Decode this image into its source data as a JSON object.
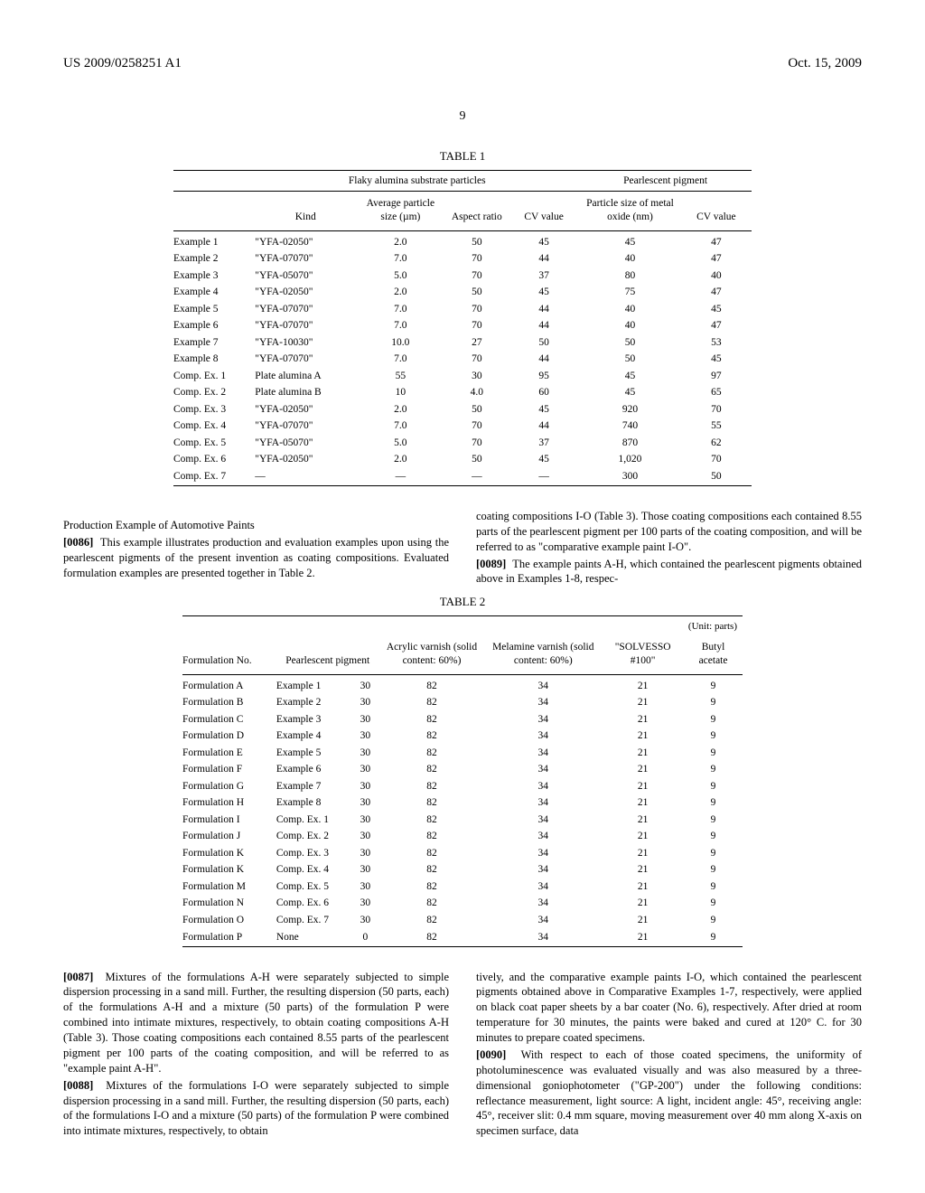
{
  "header": {
    "pub_number": "US 2009/0258251 A1",
    "pub_date": "Oct. 15, 2009"
  },
  "page_num": "9",
  "table1": {
    "caption": "TABLE 1",
    "group1": "Flaky alumina substrate particles",
    "group2": "Pearlescent pigment",
    "cols": {
      "kind": "Kind",
      "avg": "Average particle size (µm)",
      "aspect": "Aspect ratio",
      "cv1": "CV value",
      "psize": "Particle size of metal oxide (nm)",
      "cv2": "CV value"
    },
    "rows": [
      {
        "label": "Example 1",
        "kind": "\"YFA-02050\"",
        "avg": "2.0",
        "aspect": "50",
        "cv1": "45",
        "psize": "45",
        "cv2": "47"
      },
      {
        "label": "Example 2",
        "kind": "\"YFA-07070\"",
        "avg": "7.0",
        "aspect": "70",
        "cv1": "44",
        "psize": "40",
        "cv2": "47"
      },
      {
        "label": "Example 3",
        "kind": "\"YFA-05070\"",
        "avg": "5.0",
        "aspect": "70",
        "cv1": "37",
        "psize": "80",
        "cv2": "40"
      },
      {
        "label": "Example 4",
        "kind": "\"YFA-02050\"",
        "avg": "2.0",
        "aspect": "50",
        "cv1": "45",
        "psize": "75",
        "cv2": "47"
      },
      {
        "label": "Example 5",
        "kind": "\"YFA-07070\"",
        "avg": "7.0",
        "aspect": "70",
        "cv1": "44",
        "psize": "40",
        "cv2": "45"
      },
      {
        "label": "Example 6",
        "kind": "\"YFA-07070\"",
        "avg": "7.0",
        "aspect": "70",
        "cv1": "44",
        "psize": "40",
        "cv2": "47"
      },
      {
        "label": "Example 7",
        "kind": "\"YFA-10030\"",
        "avg": "10.0",
        "aspect": "27",
        "cv1": "50",
        "psize": "50",
        "cv2": "53"
      },
      {
        "label": "Example 8",
        "kind": "\"YFA-07070\"",
        "avg": "7.0",
        "aspect": "70",
        "cv1": "44",
        "psize": "50",
        "cv2": "45"
      },
      {
        "label": "Comp. Ex. 1",
        "kind": "Plate alumina A",
        "avg": "55",
        "aspect": "30",
        "cv1": "95",
        "psize": "45",
        "cv2": "97"
      },
      {
        "label": "Comp. Ex. 2",
        "kind": "Plate alumina B",
        "avg": "10",
        "aspect": "4.0",
        "cv1": "60",
        "psize": "45",
        "cv2": "65"
      },
      {
        "label": "Comp. Ex. 3",
        "kind": "\"YFA-02050\"",
        "avg": "2.0",
        "aspect": "50",
        "cv1": "45",
        "psize": "920",
        "cv2": "70"
      },
      {
        "label": "Comp. Ex. 4",
        "kind": "\"YFA-07070\"",
        "avg": "7.0",
        "aspect": "70",
        "cv1": "44",
        "psize": "740",
        "cv2": "55"
      },
      {
        "label": "Comp. Ex. 5",
        "kind": "\"YFA-05070\"",
        "avg": "5.0",
        "aspect": "70",
        "cv1": "37",
        "psize": "870",
        "cv2": "62"
      },
      {
        "label": "Comp. Ex. 6",
        "kind": "\"YFA-02050\"",
        "avg": "2.0",
        "aspect": "50",
        "cv1": "45",
        "psize": "1,020",
        "cv2": "70"
      },
      {
        "label": "Comp. Ex. 7",
        "kind": "—",
        "avg": "—",
        "aspect": "—",
        "cv1": "—",
        "psize": "300",
        "cv2": "50"
      }
    ]
  },
  "section1": {
    "title": "Production Example of Automotive Paints",
    "p0086": "This example illustrates production and evaluation examples upon using the pearlescent pigments of the present invention as coating compositions. Evaluated formulation examples are presented together in Table 2.",
    "p_right1": "coating compositions I-O (Table 3). Those coating compositions each contained 8.55 parts of the pearlescent pigment per 100 parts of the coating composition, and will be referred to as \"comparative example paint I-O\".",
    "p0089": "The example paints A-H, which contained the pearlescent pigments obtained above in Examples 1-8, respec-"
  },
  "table2": {
    "caption": "TABLE 2",
    "unit": "(Unit: parts)",
    "cols": {
      "no": "Formulation No.",
      "pigment": "Pearlescent pigment",
      "acrylic": "Acrylic varnish (solid content: 60%)",
      "melamine": "Melamine varnish (solid content: 60%)",
      "solvesso": "\"SOLVESSO #100\"",
      "butyl": "Butyl acetate"
    },
    "rows": [
      {
        "no": "Formulation A",
        "pig": "Example 1",
        "q": "30",
        "a": "82",
        "m": "34",
        "s": "21",
        "b": "9"
      },
      {
        "no": "Formulation B",
        "pig": "Example 2",
        "q": "30",
        "a": "82",
        "m": "34",
        "s": "21",
        "b": "9"
      },
      {
        "no": "Formulation C",
        "pig": "Example 3",
        "q": "30",
        "a": "82",
        "m": "34",
        "s": "21",
        "b": "9"
      },
      {
        "no": "Formulation D",
        "pig": "Example 4",
        "q": "30",
        "a": "82",
        "m": "34",
        "s": "21",
        "b": "9"
      },
      {
        "no": "Formulation E",
        "pig": "Example 5",
        "q": "30",
        "a": "82",
        "m": "34",
        "s": "21",
        "b": "9"
      },
      {
        "no": "Formulation F",
        "pig": "Example 6",
        "q": "30",
        "a": "82",
        "m": "34",
        "s": "21",
        "b": "9"
      },
      {
        "no": "Formulation G",
        "pig": "Example 7",
        "q": "30",
        "a": "82",
        "m": "34",
        "s": "21",
        "b": "9"
      },
      {
        "no": "Formulation H",
        "pig": "Example 8",
        "q": "30",
        "a": "82",
        "m": "34",
        "s": "21",
        "b": "9"
      },
      {
        "no": "Formulation I",
        "pig": "Comp. Ex. 1",
        "q": "30",
        "a": "82",
        "m": "34",
        "s": "21",
        "b": "9"
      },
      {
        "no": "Formulation J",
        "pig": "Comp. Ex. 2",
        "q": "30",
        "a": "82",
        "m": "34",
        "s": "21",
        "b": "9"
      },
      {
        "no": "Formulation K",
        "pig": "Comp. Ex. 3",
        "q": "30",
        "a": "82",
        "m": "34",
        "s": "21",
        "b": "9"
      },
      {
        "no": "Formulation K",
        "pig": "Comp. Ex. 4",
        "q": "30",
        "a": "82",
        "m": "34",
        "s": "21",
        "b": "9"
      },
      {
        "no": "Formulation M",
        "pig": "Comp. Ex. 5",
        "q": "30",
        "a": "82",
        "m": "34",
        "s": "21",
        "b": "9"
      },
      {
        "no": "Formulation N",
        "pig": "Comp. Ex. 6",
        "q": "30",
        "a": "82",
        "m": "34",
        "s": "21",
        "b": "9"
      },
      {
        "no": "Formulation O",
        "pig": "Comp. Ex. 7",
        "q": "30",
        "a": "82",
        "m": "34",
        "s": "21",
        "b": "9"
      },
      {
        "no": "Formulation P",
        "pig": "None",
        "q": "0",
        "a": "82",
        "m": "34",
        "s": "21",
        "b": "9"
      }
    ]
  },
  "section2": {
    "p0087": "Mixtures of the formulations A-H were separately subjected to simple dispersion processing in a sand mill. Further, the resulting dispersion (50 parts, each) of the formulations A-H and a mixture (50 parts) of the formulation P were combined into intimate mixtures, respectively, to obtain coating compositions A-H (Table 3). Those coating compositions each contained 8.55 parts of the pearlescent pigment per 100 parts of the coating composition, and will be referred to as \"example paint A-H\".",
    "p0088": "Mixtures of the formulations I-O were separately subjected to simple dispersion processing in a sand mill. Further, the resulting dispersion (50 parts, each) of the formulations I-O and a mixture (50 parts) of the formulation P were combined into intimate mixtures, respectively, to obtain",
    "p_right2": "tively, and the comparative example paints I-O, which contained the pearlescent pigments obtained above in Comparative Examples 1-7, respectively, were applied on black coat paper sheets by a bar coater (No. 6), respectively. After dried at room temperature for 30 minutes, the paints were baked and cured at 120° C. for 30 minutes to prepare coated specimens.",
    "p0090": "With respect to each of those coated specimens, the uniformity of photoluminescence was evaluated visually and was also measured by a three-dimensional goniophotometer (\"GP-200\") under the following conditions: reflectance measurement, light source: A light, incident angle: 45°, receiving angle: 45°, receiver slit: 0.4 mm square, moving measurement over 40 mm along X-axis on specimen surface, data"
  },
  "pn": {
    "p86": "[0086]",
    "p87": "[0087]",
    "p88": "[0088]",
    "p89": "[0089]",
    "p90": "[0090]"
  }
}
